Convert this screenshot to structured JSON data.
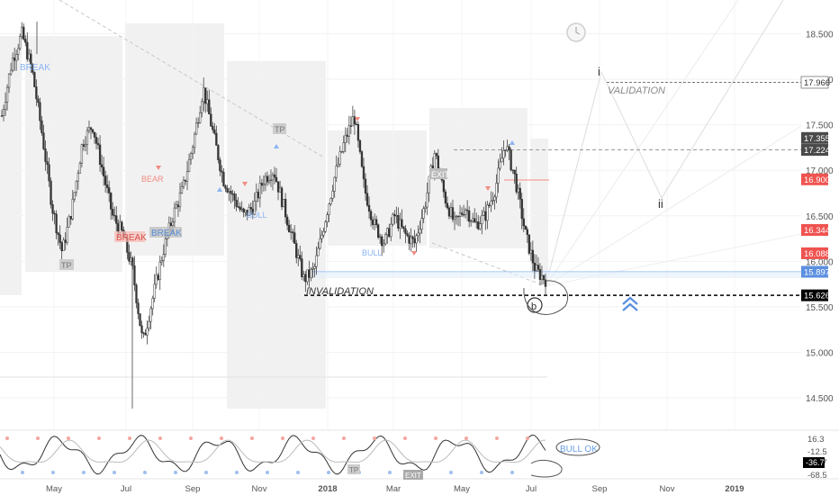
{
  "chart_data": {
    "type": "candlestick",
    "x_ticks": [
      "May",
      "Jul",
      "Sep",
      "Nov",
      "2018",
      "Mar",
      "May",
      "Jul",
      "Sep",
      "Nov",
      "2019"
    ],
    "y_ticks": [
      18.5,
      18.0,
      17.5,
      17.0,
      16.5,
      16.0,
      15.5,
      15.0,
      14.5
    ],
    "ylim": [
      14.3,
      18.92
    ],
    "price_tags": [
      {
        "value": "17.966",
        "style": "outline"
      },
      {
        "value": "17.355",
        "style": "dark"
      },
      {
        "value": "17.224",
        "style": "dark"
      },
      {
        "value": "16.900",
        "style": "red"
      },
      {
        "value": "16.344",
        "style": "red"
      },
      {
        "value": "16.088",
        "style": "red"
      },
      {
        "value": "15.897",
        "style": "blue"
      },
      {
        "value": "15.626",
        "style": "black"
      }
    ],
    "levels": [
      {
        "name": "VALIDATION",
        "value": 17.966
      },
      {
        "name": "INVALIDATION",
        "value": 15.626
      }
    ],
    "wave_labels": [
      "i",
      "ii",
      "b"
    ],
    "annotations": [
      "BREAK",
      "BEAR",
      "BREAK",
      "BREAK",
      "TP",
      "TP",
      "BULL",
      "BULL",
      "EXIT"
    ],
    "series": [
      {
        "values": [
          17.6,
          18.2,
          18.5,
          18.1,
          17.4,
          16.6,
          16.1,
          16.6,
          17.3,
          17.5,
          17.0,
          16.5,
          16.3,
          15.9,
          15.1,
          15.6,
          16.1,
          16.5,
          16.8,
          17.3,
          17.9,
          17.4,
          16.9,
          16.7,
          16.5,
          16.6,
          16.9,
          17.0,
          16.6,
          16.2,
          15.8,
          15.9,
          16.4,
          16.9,
          17.3,
          17.6,
          16.8,
          16.4,
          16.2,
          16.5,
          16.3,
          16.2,
          16.6,
          17.2,
          16.7,
          16.4,
          16.6,
          16.4,
          16.5,
          16.8,
          17.3,
          16.9,
          16.3,
          15.9,
          15.8
        ]
      }
    ],
    "oscillator": {
      "y_ticks": [
        "16.3",
        "-12.5",
        "-36.7",
        "-68.5"
      ],
      "annotations": [
        "BULL OK",
        "TP",
        "EXIT"
      ]
    }
  }
}
